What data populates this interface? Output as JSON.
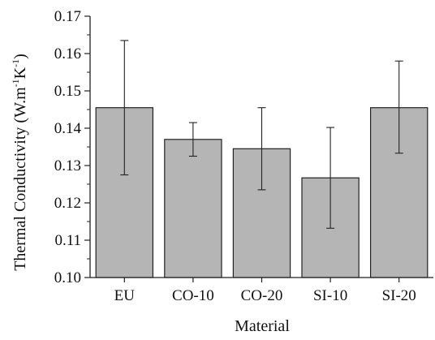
{
  "chart_data": {
    "type": "bar",
    "title": "",
    "xlabel": "Material",
    "ylabel": "Thermal Conductivity (W.m",
    "ylabel_sup1": "-1",
    "ylabel_mid": "K",
    "ylabel_sup2": "-1",
    "ylabel_end": ")",
    "categories": [
      "EU",
      "CO-10",
      "CO-20",
      "SI-10",
      "SI-20"
    ],
    "values": [
      0.1455,
      0.137,
      0.1345,
      0.1267,
      0.1455
    ],
    "error_low": [
      0.1275,
      0.1325,
      0.1235,
      0.1132,
      0.1333
    ],
    "error_high": [
      0.1635,
      0.1415,
      0.1455,
      0.1402,
      0.158
    ],
    "ylim": [
      0.1,
      0.17
    ],
    "yticks": [
      "0.10",
      "0.11",
      "0.12",
      "0.13",
      "0.14",
      "0.15",
      "0.16",
      "0.17"
    ],
    "bar_color": "#b5b5b5",
    "grid": false,
    "legend": "none"
  }
}
